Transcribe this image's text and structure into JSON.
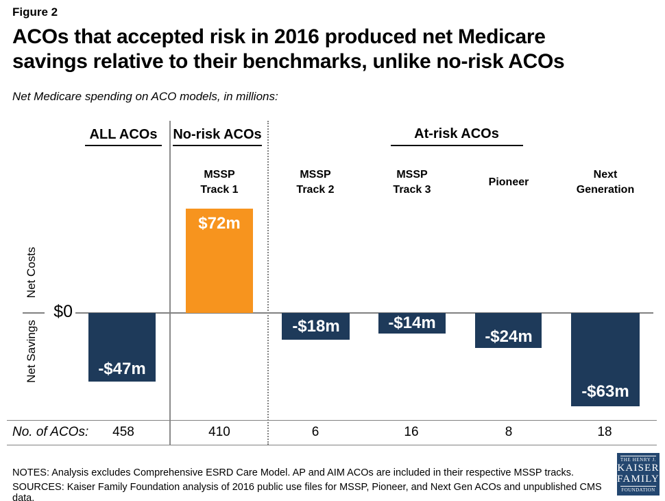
{
  "figure_label": "Figure 2",
  "title": "ACOs that accepted risk in 2016 produced net Medicare\nsavings relative to their benchmarks, unlike no-risk ACOs",
  "subtitle": "Net Medicare spending on ACO models, in millions:",
  "chart_data": {
    "type": "bar",
    "title": "Net Medicare spending on ACO models, in millions",
    "group_labels": [
      "ALL ACOs",
      "No-risk ACOs",
      "At-risk ACOs"
    ],
    "categories": [
      "ALL ACOs",
      "MSSP Track 1",
      "MSSP Track 2",
      "MSSP Track 3",
      "Pioneer",
      "Next Generation"
    ],
    "sub_headers": [
      "MSSP\nTrack 1",
      "MSSP\nTrack 2",
      "MSSP\nTrack 3",
      "Pioneer",
      "Next\nGeneration"
    ],
    "values": [
      -47,
      72,
      -18,
      -14,
      -24,
      -63
    ],
    "value_labels": [
      "-$47m",
      "$72m",
      "-$18m",
      "-$14m",
      "-$24m",
      "-$63m"
    ],
    "bar_colors": [
      "#1E3A5A",
      "#F7941E",
      "#1E3A5A",
      "#1E3A5A",
      "#1E3A5A",
      "#1E3A5A"
    ],
    "axis": {
      "zero_label": "$0",
      "upper_label": "Net Costs",
      "lower_label": "Net Savings",
      "unit": "millions of dollars",
      "ylim": [
        -70,
        80
      ],
      "grid": false
    },
    "aco_row": {
      "label": "No. of ACOs:",
      "values": [
        458,
        410,
        6,
        16,
        8,
        18
      ]
    }
  },
  "notes": "NOTES: Analysis excludes Comprehensive ESRD Care Model. AP and AIM ACOs are included in their respective MSSP tracks.",
  "sources": "SOURCES: Kaiser Family Foundation analysis of 2016 public use files for MSSP, Pioneer, and Next Gen ACOs and unpublished CMS data.",
  "logo": {
    "top": "THE HENRY J.",
    "name1": "KAISER",
    "name2": "FAMILY",
    "bottom": "FOUNDATION"
  },
  "colors": {
    "bar_navy": "#1E3A5A",
    "bar_orange": "#F7941E",
    "logo_blue": "#23466F",
    "line_gray": "#808080",
    "text_black": "#000000"
  }
}
